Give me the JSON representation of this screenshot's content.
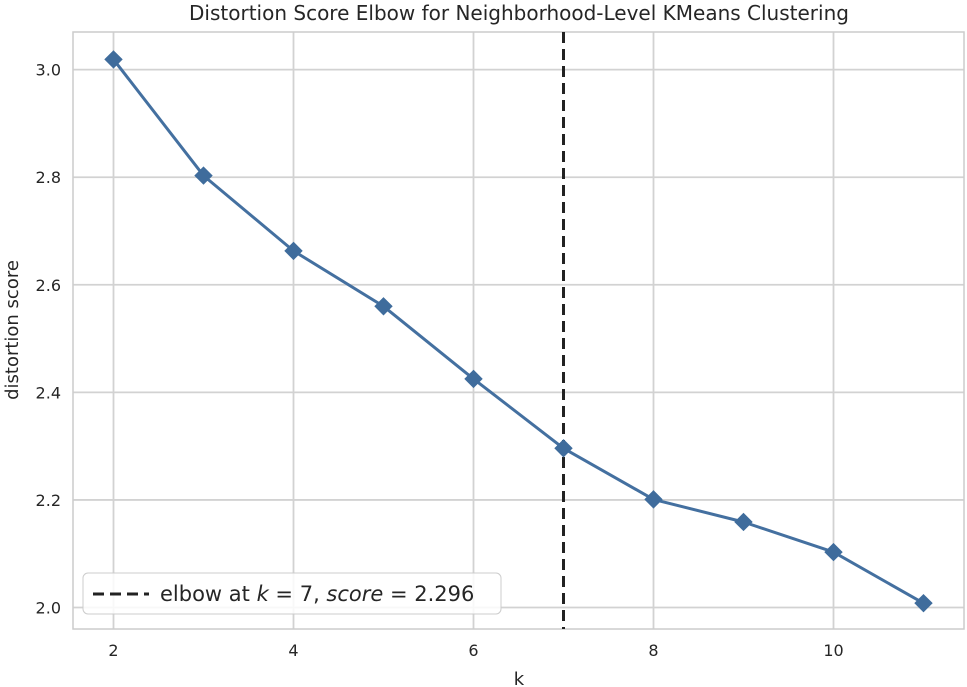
{
  "chart_data": {
    "type": "line",
    "title": "Distortion Score Elbow for Neighborhood-Level KMeans Clustering",
    "xlabel": "k",
    "ylabel": "distortion score",
    "x": [
      2,
      3,
      4,
      5,
      6,
      7,
      8,
      9,
      10,
      11
    ],
    "series": [
      {
        "values": [
          3.019,
          2.803,
          2.663,
          2.56,
          2.425,
          2.296,
          2.201,
          2.159,
          2.103,
          2.008
        ]
      }
    ],
    "xlim": [
      1.55,
      11.45
    ],
    "ylim": [
      1.96,
      3.07
    ],
    "xticks": [
      2,
      4,
      6,
      8,
      10
    ],
    "yticks": [
      2.0,
      2.2,
      2.4,
      2.6,
      2.8,
      3.0
    ],
    "ytick_labels": [
      "2.0",
      "2.2",
      "2.4",
      "2.6",
      "2.8",
      "3.0"
    ],
    "grid": true,
    "elbow": {
      "k": 7,
      "score": "2.296"
    },
    "legend": {
      "position": "bottom-left",
      "prefix": "elbow at ",
      "k_var": "k",
      "equals": " = ",
      "k_value": "7",
      "sep": ", ",
      "score_var": "score",
      "score_value": "2.296"
    },
    "colors": {
      "line": "#4470a0",
      "marker": "#3f6c9c",
      "elbow_line": "#222222",
      "grid": "#d2d2d2",
      "axes_edge": "#cccccc",
      "text": "#262626"
    },
    "marker": "diamond"
  }
}
